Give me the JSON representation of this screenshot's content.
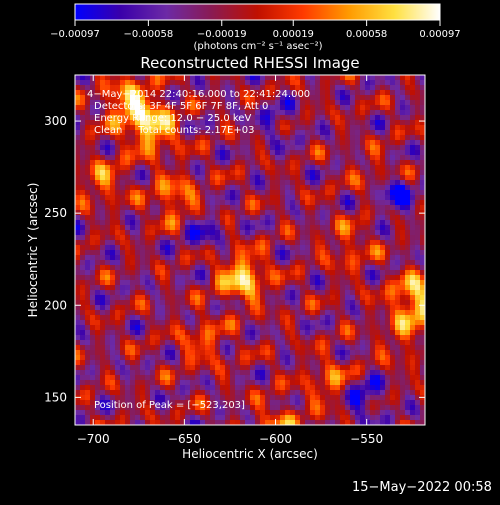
{
  "chart_data": {
    "type": "heatmap",
    "title": "Reconstructed RHESSI Image",
    "xlabel": "Heliocentric X (arcsec)",
    "ylabel": "Heliocentric Y (arcsec)",
    "xlim": [
      -710,
      -518
    ],
    "ylim": [
      135,
      325
    ],
    "x_ticks": [
      -700,
      -650,
      -600,
      -550
    ],
    "x_tick_labels": [
      "−700",
      "−650",
      "−600",
      "−550"
    ],
    "y_ticks": [
      150,
      200,
      250,
      300
    ],
    "y_tick_labels": [
      "150",
      "200",
      "250",
      "300"
    ],
    "colorbar": {
      "min": -0.00097,
      "max": 0.00097,
      "ticks": [
        -0.00097,
        -0.00058,
        -0.00019,
        0.00019,
        0.00058,
        0.00097
      ],
      "tick_labels": [
        "−0.00097",
        "−0.00058",
        "−0.00019",
        "0.00019",
        "0.00058",
        "0.00097"
      ],
      "unit_label": "(photons cm⁻² s⁻¹ asec⁻²)",
      "colors": [
        "#0000ff",
        "#3a00aa",
        "#6c2aa6",
        "#8a1a52",
        "#c01000",
        "#ff3a00",
        "#ff9a00",
        "#ffe040",
        "#ffffff"
      ]
    },
    "annotations": [
      "4−May−2014 22:40:16.000 to 22:41:24.000",
      "Detectors: 3F 4F 5F 6F 7F 8F, Att 0",
      "Energy Range: 12.0 − 25.0 keV",
      "Clean     Total counts: 2.17E+03"
    ],
    "peak_label": "Position of Peak = [−523,203]",
    "hot_sources": [
      {
        "x": -680,
        "y": 310,
        "value": 0.00085
      },
      {
        "x": -667,
        "y": 296,
        "value": 0.0009
      },
      {
        "x": -618,
        "y": 215,
        "value": 0.00095
      },
      {
        "x": -523,
        "y": 203,
        "value": 0.00097
      },
      {
        "x": -655,
        "y": 258,
        "value": 0.0006
      },
      {
        "x": -695,
        "y": 268,
        "value": 0.0005
      },
      {
        "x": -560,
        "y": 232,
        "value": 0.0004
      },
      {
        "x": -570,
        "y": 158,
        "value": 0.0005
      },
      {
        "x": -640,
        "y": 180,
        "value": 0.00045
      },
      {
        "x": -598,
        "y": 135,
        "value": 0.0005
      },
      {
        "x": -530,
        "y": 182,
        "value": 0.00035
      },
      {
        "x": -545,
        "y": 270,
        "value": 0.0003
      }
    ],
    "cold_sources": [
      {
        "x": -535,
        "y": 260,
        "value": -0.0008
      },
      {
        "x": -552,
        "y": 150,
        "value": -0.0007
      },
      {
        "x": -640,
        "y": 240,
        "value": -0.0005
      },
      {
        "x": -600,
        "y": 300,
        "value": -0.0004
      }
    ]
  },
  "footer": {
    "timestamp": "15−May−2022 00:58"
  }
}
